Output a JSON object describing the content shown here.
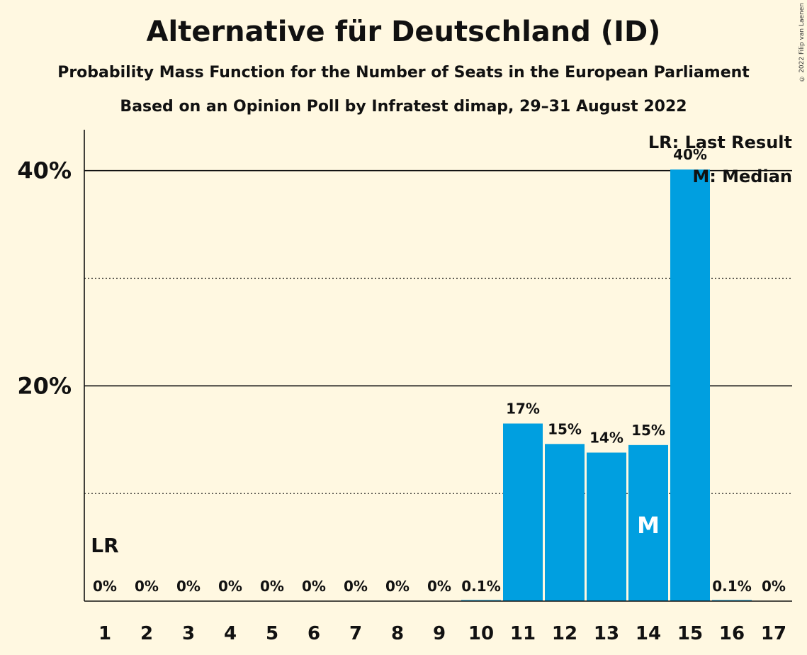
{
  "chart_data": {
    "type": "bar",
    "title": "Alternative für Deutschland (ID)",
    "subtitle": "Probability Mass Function for the Number of Seats in the European Parliament",
    "subtitle2": "Based on an Opinion Poll by Infratest dimap, 29–31 August 2022",
    "categories": [
      "1",
      "2",
      "3",
      "4",
      "5",
      "6",
      "7",
      "8",
      "9",
      "10",
      "11",
      "12",
      "13",
      "14",
      "15",
      "16",
      "17"
    ],
    "values": [
      0,
      0,
      0,
      0,
      0,
      0,
      0,
      0,
      0,
      0.1,
      16.5,
      14.6,
      13.8,
      14.5,
      40.1,
      0.1,
      0
    ],
    "value_labels": [
      "0%",
      "0%",
      "0%",
      "0%",
      "0%",
      "0%",
      "0%",
      "0%",
      "0%",
      "0.1%",
      "17%",
      "15%",
      "14%",
      "15%",
      "40%",
      "0.1%",
      "0%"
    ],
    "ylim": [
      0,
      43.8
    ],
    "y_ticks": [
      {
        "value": 20,
        "label": "20%"
      },
      {
        "value": 40,
        "label": "40%"
      }
    ],
    "y_minor_gridlines": [
      10,
      30
    ],
    "last_result_index": 0,
    "median_index": 13,
    "last_result_marker": "LR",
    "median_marker": "M",
    "legend": [
      "LR: Last Result",
      "M: Median"
    ],
    "legend_position": "top-right",
    "bar_color": "#009FE0",
    "background_color": "#FFF8E1",
    "copyright": "© 2022 Filip van Laenen"
  }
}
